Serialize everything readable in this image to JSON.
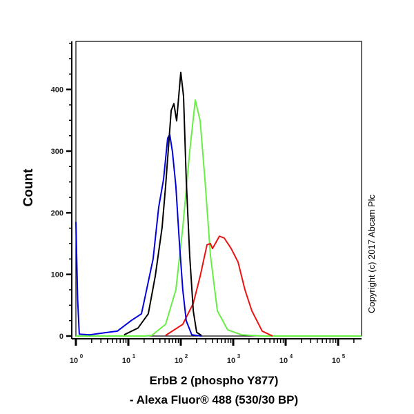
{
  "chart_data": {
    "type": "line",
    "title": "",
    "xlabel": [
      "ErbB 2 (phospho Y877)",
      "- Alexa Fluor® 488 (530/30 BP)"
    ],
    "ylabel": "Count",
    "xscale": "log",
    "xlim": [
      1,
      280000
    ],
    "ylim": [
      0,
      478
    ],
    "grid": false,
    "legend": "none",
    "x_ticks": [
      {
        "base": "10",
        "exp": "0",
        "value": 1
      },
      {
        "base": "10",
        "exp": "1",
        "value": 10
      },
      {
        "base": "10",
        "exp": "2",
        "value": 100
      },
      {
        "base": "10",
        "exp": "3",
        "value": 1000
      },
      {
        "base": "10",
        "exp": "4",
        "value": 10000
      },
      {
        "base": "10",
        "exp": "5",
        "value": 100000
      }
    ],
    "y_ticks": [
      "0",
      "100",
      "200",
      "300",
      "400"
    ],
    "y_tick_values": [
      0,
      100,
      200,
      300,
      400
    ],
    "series": [
      {
        "color": "#0000dd",
        "x": [
          1,
          1.08,
          1.16,
          1.83,
          3.36,
          6.16,
          11.3,
          17.8,
          20.7,
          24.0,
          29.7,
          37.9,
          46.9,
          56.3,
          61.6,
          69.4,
          80.7,
          93.9,
          109,
          127,
          162,
          250
        ],
        "y": [
          185,
          60,
          3,
          2,
          5,
          8,
          25,
          36,
          62,
          88,
          125,
          209,
          254,
          321,
          327,
          299,
          243,
          153,
          75,
          25,
          2,
          0
        ]
      },
      {
        "color": "#000000",
        "x": [
          8.34,
          15.3,
          24,
          32.6,
          44,
          51.4,
          65.6,
          73.9,
          83.4,
          100,
          113,
          127,
          148,
          173,
          201,
          248
        ],
        "y": [
          2,
          13,
          36,
          97,
          176,
          243,
          366,
          377,
          349,
          428,
          389,
          254,
          131,
          41,
          6,
          1
        ]
      },
      {
        "color": "#66ee44",
        "x": [
          1,
          20,
          28,
          51.4,
          80.7,
          109,
          148,
          189,
          234,
          289,
          368,
          498,
          785,
          1438,
          3571,
          280000
        ],
        "y": [
          0,
          0,
          1,
          19,
          75,
          176,
          299,
          383,
          349,
          254,
          131,
          41,
          10,
          2,
          0,
          0
        ]
      },
      {
        "color": "#ee1111",
        "x": [
          51.4,
          109,
          173,
          234,
          316,
          368,
          403,
          545,
          674,
          914,
          1237,
          1675,
          2265,
          3571,
          5623
        ],
        "y": [
          1,
          19,
          53,
          97,
          148,
          150,
          142,
          162,
          159,
          142,
          120,
          75,
          41,
          8,
          0
        ]
      }
    ]
  },
  "copyright": "Copyright (c) 2017 Abcam Plc"
}
